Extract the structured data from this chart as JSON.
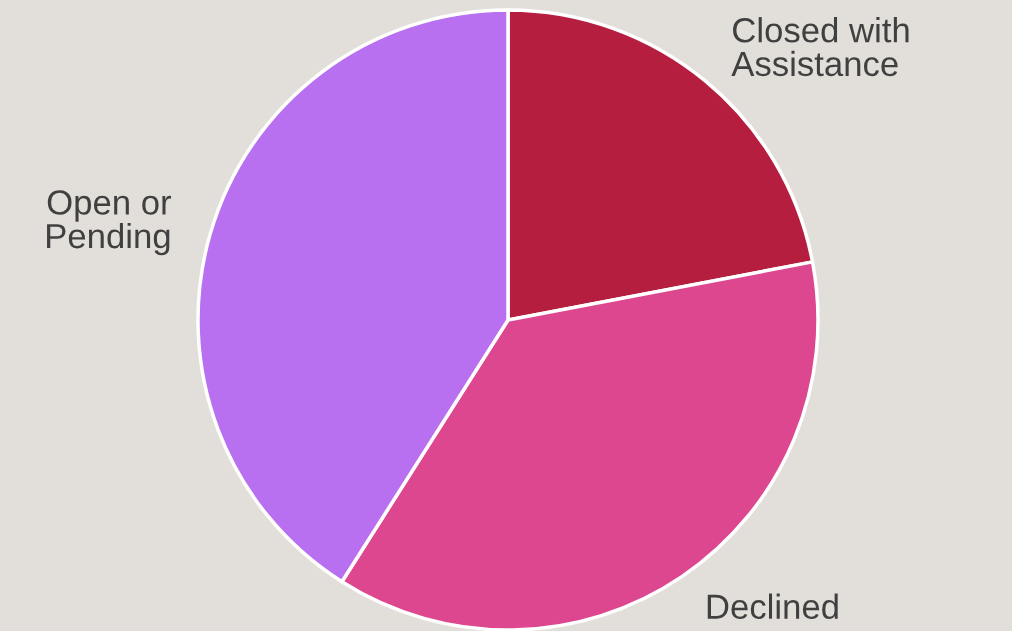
{
  "chart_data": {
    "type": "pie",
    "categories": [
      "Closed with\nAssistance",
      "Declined",
      "Open or\nPending"
    ],
    "values": [
      22,
      37,
      41
    ],
    "colors": [
      "#b61e40",
      "#dd478f",
      "#b86ff0"
    ],
    "legend": false
  }
}
